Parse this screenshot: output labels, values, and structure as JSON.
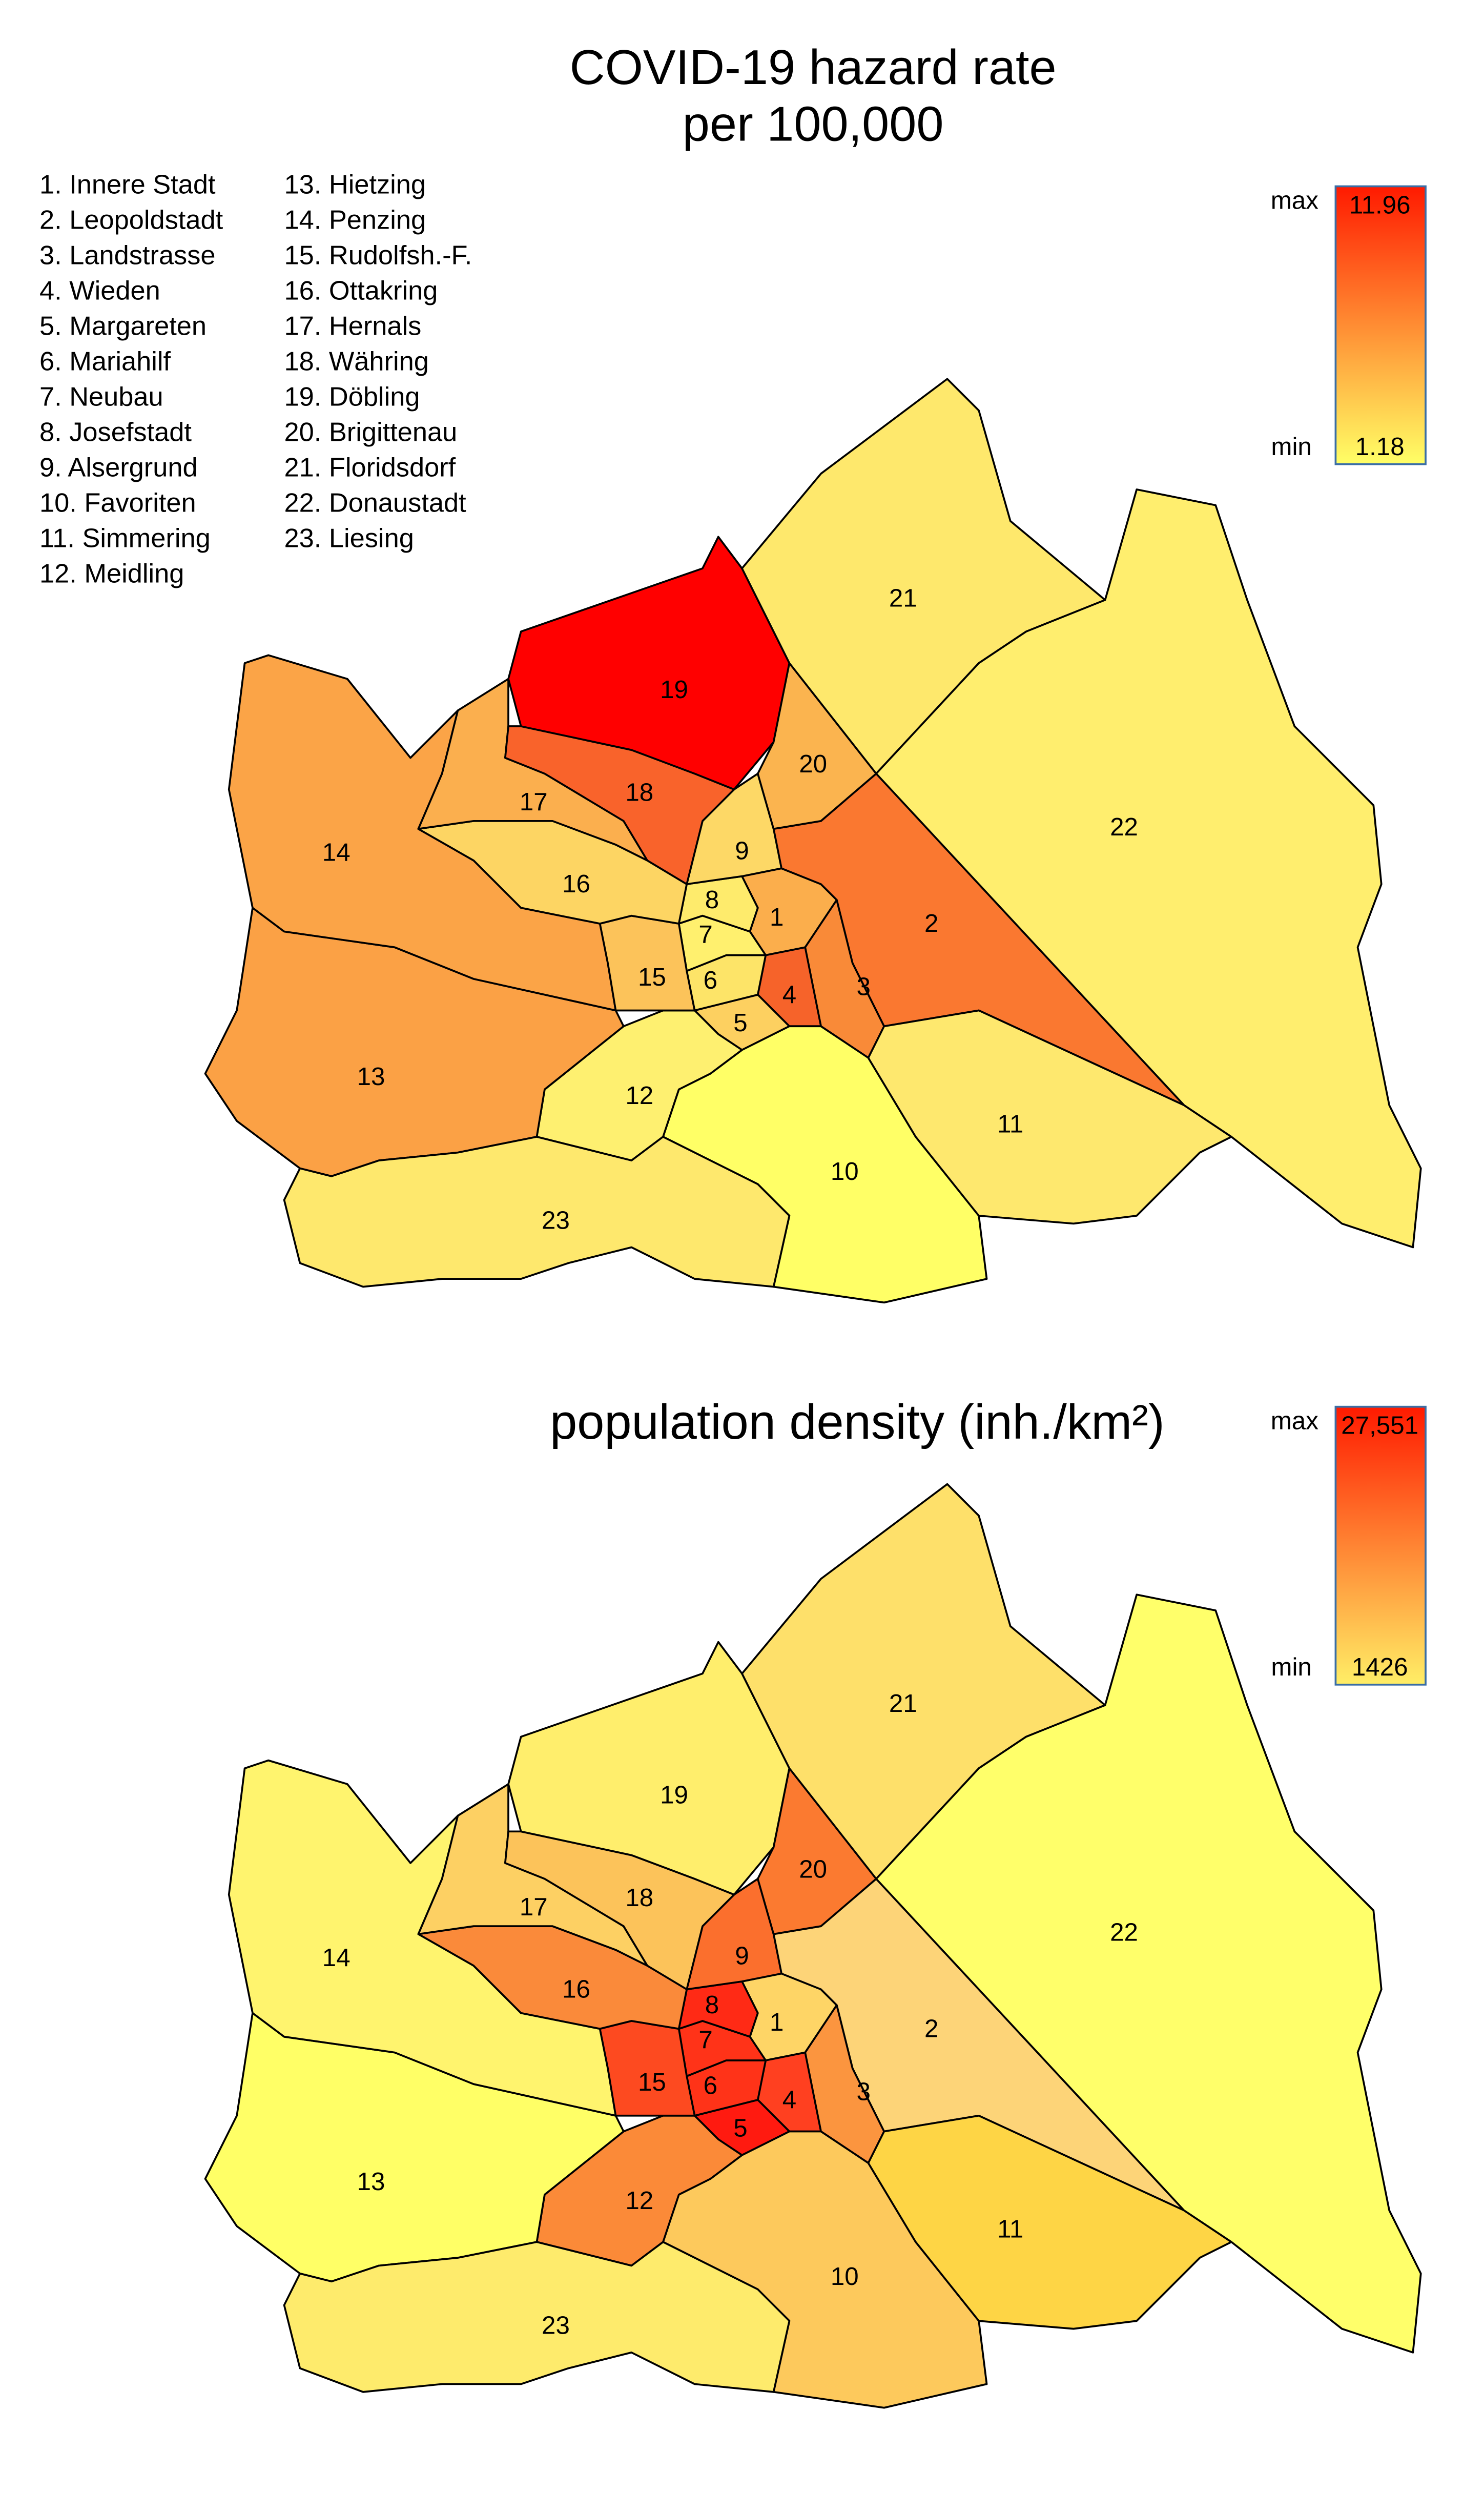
{
  "district_list": [
    "1.  Innere Stadt",
    "2.  Leopoldstadt",
    "3.  Landstrasse",
    "4.  Wieden",
    "5.  Margareten",
    "6.  Mariahilf",
    "7.  Neubau",
    "8.  Josefstadt",
    "9.  Alsergrund",
    "10. Favoriten",
    "11. Simmering",
    "12. Meidling",
    "13. Hietzing",
    "14. Penzing",
    "15. Rudolfsh.-F.",
    "16. Ottakring",
    "17. Hernals",
    "18. Währing",
    "19. Döbling",
    "20. Brigittenau",
    "21. Floridsdorf",
    "22. Donaustadt",
    "23. Liesing"
  ],
  "maps": [
    {
      "title": [
        "COVID-19 hazard rate",
        "per 100,000"
      ],
      "legend": {
        "max_caption": "max",
        "max_value": "11.96",
        "min_caption": "min",
        "min_value": "1.18",
        "top_color": "#ff1a00",
        "bottom_color": "#ffff66"
      },
      "districts": [
        {
          "label": "1",
          "color": "#fbae4c"
        },
        {
          "label": "2",
          "color": "#fa7830"
        },
        {
          "label": "3",
          "color": "#f98a38"
        },
        {
          "label": "4",
          "color": "#f6632a"
        },
        {
          "label": "5",
          "color": "#fdd060"
        },
        {
          "label": "6",
          "color": "#fde468"
        },
        {
          "label": "7",
          "color": "#fff06e"
        },
        {
          "label": "8",
          "color": "#feeb6c"
        },
        {
          "label": "9",
          "color": "#fdd866"
        },
        {
          "label": "10",
          "color": "#ffff66"
        },
        {
          "label": "11",
          "color": "#fee86e"
        },
        {
          "label": "12",
          "color": "#fef070"
        },
        {
          "label": "13",
          "color": "#fba145"
        },
        {
          "label": "14",
          "color": "#fba447"
        },
        {
          "label": "15",
          "color": "#fcc35a"
        },
        {
          "label": "16",
          "color": "#fdd563"
        },
        {
          "label": "17",
          "color": "#fbaf4e"
        },
        {
          "label": "18",
          "color": "#f9632b"
        },
        {
          "label": "19",
          "color": "#ff0000"
        },
        {
          "label": "20",
          "color": "#fbb44f"
        },
        {
          "label": "21",
          "color": "#fee86c"
        },
        {
          "label": "22",
          "color": "#ffee6e"
        },
        {
          "label": "23",
          "color": "#fee86d"
        }
      ]
    },
    {
      "title": [
        "population density (inh./km²)"
      ],
      "legend": {
        "max_caption": "max",
        "max_value": "27,551",
        "min_caption": "min",
        "min_value": "1426",
        "top_color": "#ff1a00",
        "bottom_color": "#ffee66"
      },
      "districts": [
        {
          "label": "1",
          "color": "#fed566"
        },
        {
          "label": "2",
          "color": "#fdd478"
        },
        {
          "label": "3",
          "color": "#fb953f"
        },
        {
          "label": "4",
          "color": "#ff4020"
        },
        {
          "label": "5",
          "color": "#ff1a10"
        },
        {
          "label": "6",
          "color": "#ff3318"
        },
        {
          "label": "7",
          "color": "#ff3318"
        },
        {
          "label": "8",
          "color": "#ff2a15"
        },
        {
          "label": "9",
          "color": "#fb6f2d"
        },
        {
          "label": "10",
          "color": "#fdc95c"
        },
        {
          "label": "11",
          "color": "#fed545"
        },
        {
          "label": "12",
          "color": "#fb8a38"
        },
        {
          "label": "13",
          "color": "#ffff66"
        },
        {
          "label": "14",
          "color": "#fff46e"
        },
        {
          "label": "15",
          "color": "#fd4a20"
        },
        {
          "label": "16",
          "color": "#fa8a3a"
        },
        {
          "label": "17",
          "color": "#fdd063"
        },
        {
          "label": "18",
          "color": "#fcc35a"
        },
        {
          "label": "19",
          "color": "#ffee6c"
        },
        {
          "label": "20",
          "color": "#fb7a30"
        },
        {
          "label": "21",
          "color": "#fee06a"
        },
        {
          "label": "22",
          "color": "#ffff6a"
        },
        {
          "label": "23",
          "color": "#feeb6c"
        }
      ]
    }
  ]
}
